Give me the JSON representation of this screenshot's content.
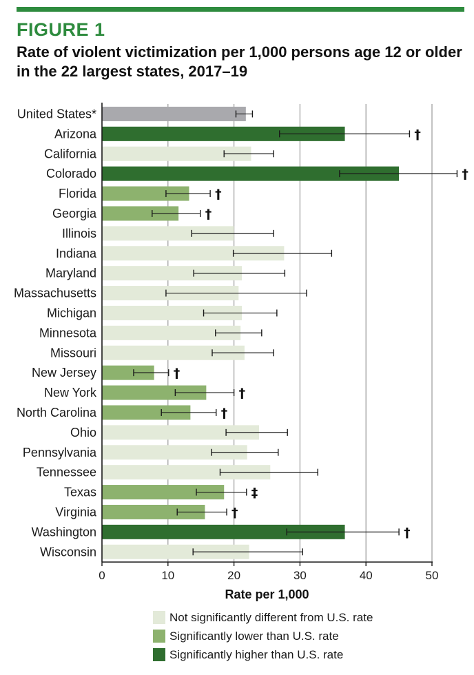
{
  "figure": {
    "label": "FIGURE 1",
    "title": "Rate of violent victimization per 1,000 persons age 12 or older in the 22 largest states, 2017–19"
  },
  "colors": {
    "accent": "#2e8b3e",
    "us": "#a9a9ad",
    "not_significant": "#e3ead9",
    "lower": "#8db26e",
    "higher": "#2f6e2f",
    "grid": "#9a9a9a",
    "error_bar": "#1a1a1a"
  },
  "chart_data": {
    "type": "bar",
    "orientation": "horizontal",
    "title": "Rate of violent victimization per 1,000 persons age 12 or older in the 22 largest states, 2017–19",
    "xlabel": "Rate per 1,000",
    "ylabel": "",
    "xlim": [
      0,
      50
    ],
    "xticks": [
      0,
      10,
      20,
      30,
      40,
      50
    ],
    "grid": true,
    "categories": [
      "United States*",
      "Arizona",
      "California",
      "Colorado",
      "Florida",
      "Georgia",
      "Illinois",
      "Indiana",
      "Maryland",
      "Massachusetts",
      "Michigan",
      "Minnesota",
      "Missouri",
      "New Jersey",
      "New York",
      "North Carolina",
      "Ohio",
      "Pennsylvania",
      "Tennessee",
      "Texas",
      "Virginia",
      "Washington",
      "Wisconsin"
    ],
    "values": [
      21.8,
      36.8,
      22.6,
      45.0,
      13.2,
      11.6,
      20.0,
      27.6,
      21.2,
      20.7,
      21.2,
      21.0,
      21.6,
      7.9,
      15.8,
      13.4,
      23.8,
      22.0,
      25.5,
      18.5,
      15.6,
      36.8,
      22.3
    ],
    "error_low": [
      20.3,
      26.9,
      18.5,
      36.0,
      9.7,
      7.6,
      13.6,
      19.9,
      13.9,
      9.7,
      15.4,
      17.2,
      16.7,
      4.8,
      11.1,
      9.0,
      18.8,
      16.6,
      17.9,
      14.3,
      11.4,
      28.0,
      13.8
    ],
    "error_high": [
      22.8,
      46.6,
      26.0,
      53.8,
      16.4,
      14.9,
      26.0,
      34.8,
      27.7,
      31.0,
      26.5,
      24.2,
      26.0,
      10.1,
      20.0,
      17.3,
      28.1,
      26.7,
      32.7,
      21.9,
      18.9,
      45.0,
      30.4
    ],
    "groups": [
      "us",
      "higher",
      "not_significant",
      "higher",
      "lower",
      "lower",
      "not_significant",
      "not_significant",
      "not_significant",
      "not_significant",
      "not_significant",
      "not_significant",
      "not_significant",
      "lower",
      "lower",
      "lower",
      "not_significant",
      "not_significant",
      "not_significant",
      "lower",
      "lower",
      "higher",
      "not_significant"
    ],
    "significance_marks": [
      "",
      "†",
      "",
      "†",
      "†",
      "†",
      "",
      "",
      "",
      "",
      "",
      "",
      "",
      "†",
      "†",
      "†",
      "",
      "",
      "",
      "‡",
      "†",
      "†",
      ""
    ],
    "legend": [
      {
        "key": "not_significant",
        "label": "Not significantly different from U.S. rate"
      },
      {
        "key": "lower",
        "label": "Significantly lower than U.S. rate"
      },
      {
        "key": "higher",
        "label": "Significantly higher than U.S. rate"
      }
    ],
    "legend_position": "bottom"
  }
}
